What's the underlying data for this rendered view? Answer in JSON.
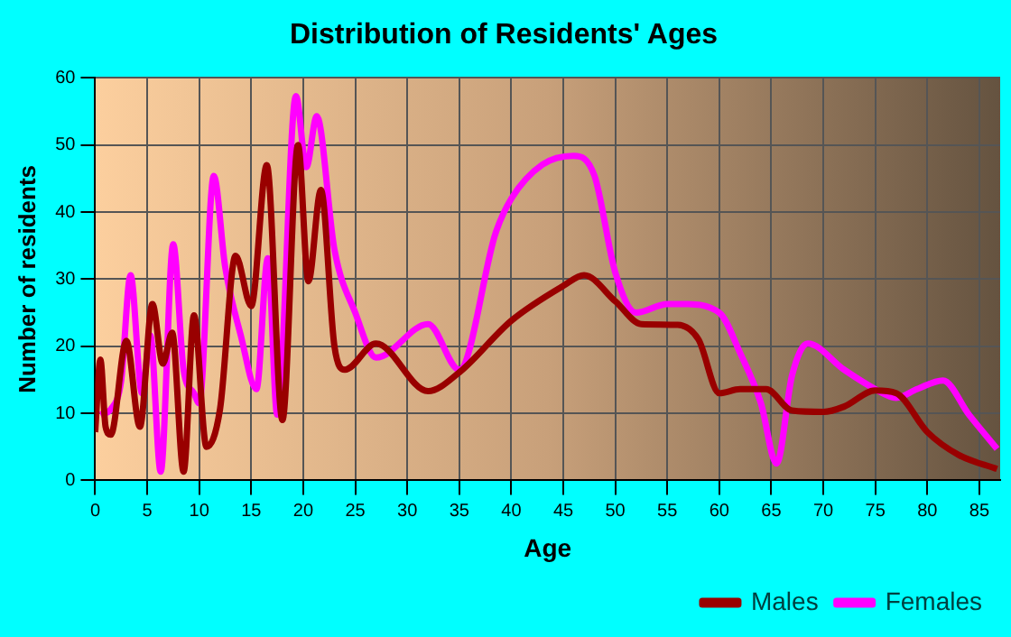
{
  "chart_data": {
    "type": "line",
    "title": "Distribution of Residents' Ages",
    "xlabel": "Age",
    "ylabel": "Number of residents",
    "xlim": [
      0,
      87
    ],
    "xticks": [
      0,
      5,
      10,
      15,
      20,
      25,
      30,
      35,
      40,
      45,
      50,
      55,
      60,
      65,
      70,
      75,
      80,
      85
    ],
    "ylim": [
      0,
      60
    ],
    "yticks": [
      0,
      10,
      20,
      30,
      40,
      50,
      60
    ],
    "grid": true,
    "legend": "bottom right",
    "marker": "none",
    "series": [
      {
        "name": "Males",
        "color": "#990000",
        "x": [
          0,
          0.5,
          1,
          1.5,
          3,
          4.3,
          5.5,
          6.5,
          7.4,
          8.5,
          9.5,
          10.7,
          12,
          13.5,
          15,
          16.5,
          18,
          19.5,
          20.5,
          21.7,
          23,
          24,
          27,
          32,
          35,
          40,
          45,
          47,
          50,
          52.5,
          56,
          58,
          60,
          62,
          64.5,
          67,
          70,
          72,
          75,
          77,
          80,
          83,
          86.7
        ],
        "values": [
          7.2,
          18,
          8,
          6.8,
          20.8,
          8,
          26.3,
          17.4,
          22,
          1.3,
          24.6,
          5,
          10.6,
          33.5,
          26,
          47,
          9,
          50,
          29.7,
          43.3,
          20,
          16.5,
          20.4,
          13.3,
          16.1,
          23.8,
          29,
          30.6,
          26.7,
          23.3,
          23.2,
          21,
          13,
          13.6,
          13.6,
          10.4,
          10.2,
          11,
          13.4,
          13,
          7.2,
          3.8,
          1.7
        ]
      },
      {
        "name": "Females",
        "color": "#ff00ff",
        "x": [
          0.5,
          1.5,
          2.5,
          3.4,
          4.5,
          5.3,
          6.3,
          7.5,
          8.5,
          9.5,
          10,
          11.4,
          12.5,
          14,
          15.5,
          16.6,
          17.5,
          19.3,
          20.3,
          21.3,
          23,
          25,
          27,
          32,
          35,
          38.5,
          40,
          43,
          46,
          48,
          50,
          52,
          55,
          56.5,
          60,
          62,
          64,
          65.5,
          67,
          68.5,
          72,
          75,
          77,
          79,
          81.5,
          84,
          86.7
        ],
        "values": [
          9.8,
          10.6,
          14.9,
          30.6,
          13,
          21.6,
          1.3,
          35.2,
          16.5,
          13,
          11.5,
          45.4,
          31.8,
          21.6,
          13.6,
          33.1,
          9.8,
          57.3,
          46.7,
          54.3,
          34.4,
          25,
          18.3,
          23.3,
          16.5,
          36.9,
          42,
          47.1,
          48.4,
          45.4,
          31,
          25,
          26.3,
          26.3,
          25,
          19,
          11.5,
          2.5,
          15.7,
          20.4,
          16.5,
          13.6,
          12.3,
          13.6,
          14.9,
          9.8,
          4.7
        ]
      }
    ]
  }
}
